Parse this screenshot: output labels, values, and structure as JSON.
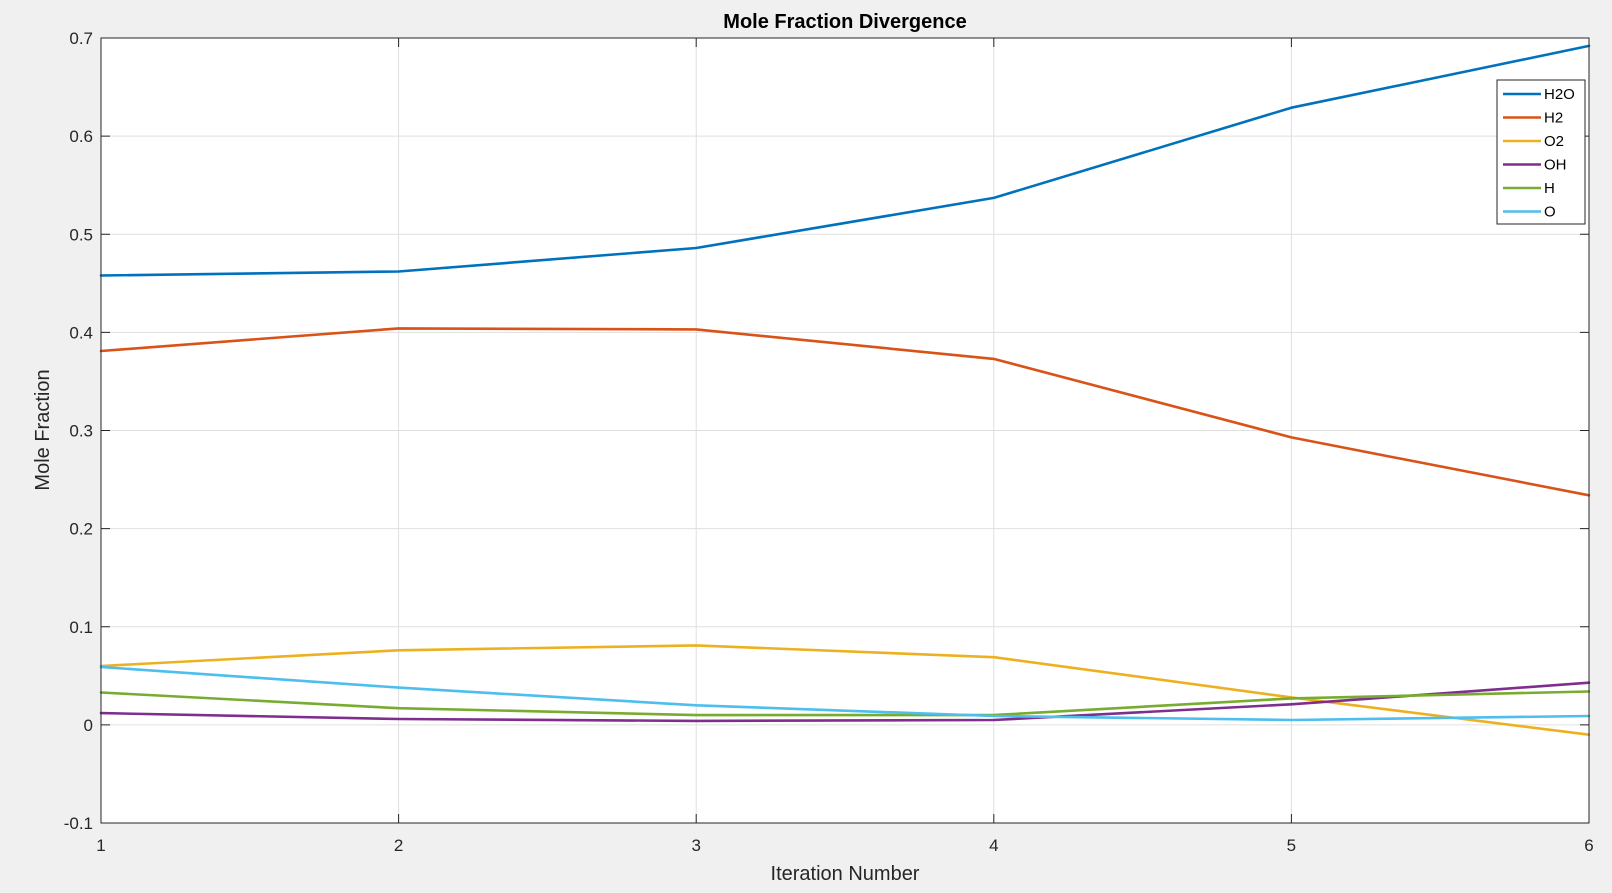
{
  "chart_data": {
    "type": "line",
    "title": "Mole Fraction Divergence",
    "xlabel": "Iteration Number",
    "ylabel": "Mole Fraction",
    "x": [
      1,
      2,
      3,
      4,
      5,
      6
    ],
    "xlim": [
      1,
      6
    ],
    "ylim": [
      -0.1,
      0.7
    ],
    "xticks": [
      "1",
      "2",
      "3",
      "4",
      "5",
      "6"
    ],
    "yticks": [
      "-0.1",
      "0",
      "0.1",
      "0.2",
      "0.3",
      "0.4",
      "0.5",
      "0.6",
      "0.7"
    ],
    "grid": true,
    "legend_position": "top-right",
    "series": [
      {
        "name": "H2O",
        "color": "#0072BD",
        "values": [
          0.458,
          0.462,
          0.486,
          0.537,
          0.629,
          0.692
        ]
      },
      {
        "name": "H2",
        "color": "#D95319",
        "values": [
          0.381,
          0.404,
          0.403,
          0.373,
          0.293,
          0.234
        ]
      },
      {
        "name": "O2",
        "color": "#EDB120",
        "values": [
          0.06,
          0.076,
          0.081,
          0.069,
          0.028,
          -0.01
        ]
      },
      {
        "name": "OH",
        "color": "#7E2F8E",
        "values": [
          0.012,
          0.006,
          0.004,
          0.005,
          0.021,
          0.043
        ]
      },
      {
        "name": "H",
        "color": "#77AC30",
        "values": [
          0.033,
          0.017,
          0.01,
          0.01,
          0.027,
          0.034
        ]
      },
      {
        "name": "O",
        "color": "#4DBEEE",
        "values": [
          0.059,
          0.038,
          0.02,
          0.009,
          0.005,
          0.009
        ]
      }
    ]
  }
}
